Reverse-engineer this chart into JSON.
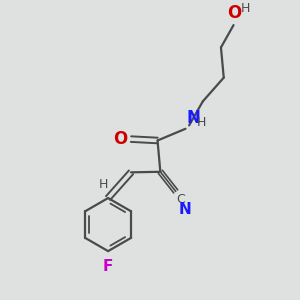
{
  "bg_color": "#dfe0e0",
  "bond_color": "#4a4a4a",
  "atom_colors": {
    "O": "#cc0000",
    "N": "#1a1aff",
    "F": "#cc00cc",
    "C": "#4a4a4a",
    "H": "#4a4a4a"
  },
  "figsize": [
    3.0,
    3.0
  ],
  "dpi": 100
}
